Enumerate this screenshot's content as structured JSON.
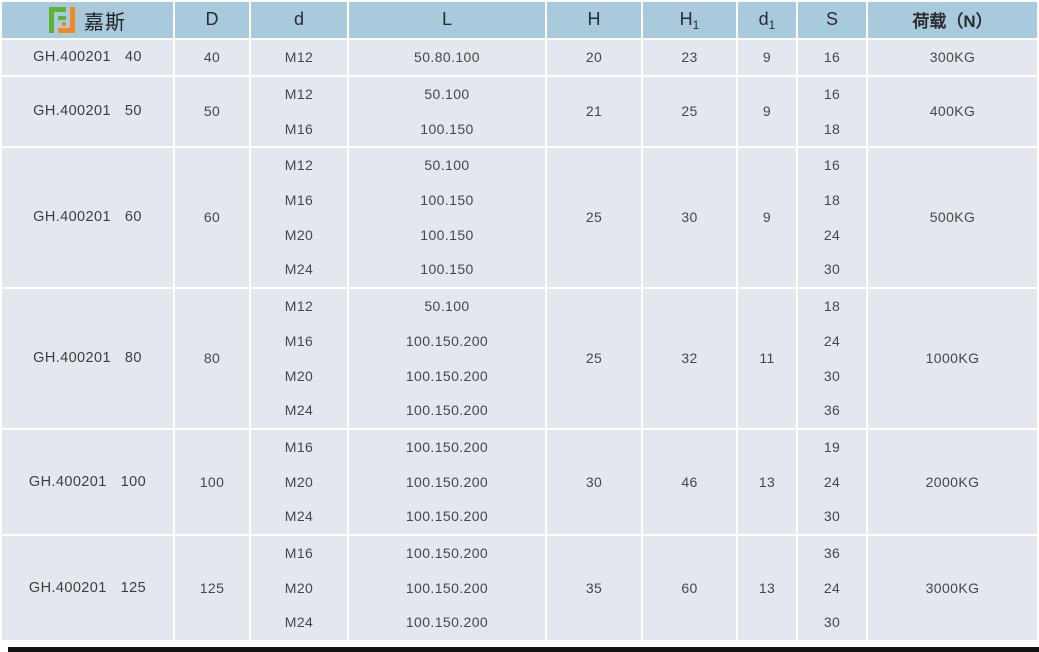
{
  "header": {
    "brand": "嘉斯",
    "columns": [
      {
        "label": "D"
      },
      {
        "label": "d"
      },
      {
        "label": "L"
      },
      {
        "label": "H"
      },
      {
        "label": "H",
        "sub": "1"
      },
      {
        "label": "d",
        "sub": "1"
      },
      {
        "label": "S"
      },
      {
        "label": "荷载（N）"
      }
    ]
  },
  "rows": [
    {
      "name": "GH.400201",
      "spec": "40",
      "D": "40",
      "d": [
        "M12"
      ],
      "L": [
        "50.80.100"
      ],
      "H": "20",
      "H1": "23",
      "d1": "9",
      "S": [
        "16"
      ],
      "load": "300KG"
    },
    {
      "name": "GH.400201",
      "spec": "50",
      "D": "50",
      "d": [
        "M12",
        "M16"
      ],
      "L": [
        "50.100",
        "100.150"
      ],
      "H": "21",
      "H1": "25",
      "d1": "9",
      "S": [
        "16",
        "18"
      ],
      "load": "400KG"
    },
    {
      "name": "GH.400201",
      "spec": "60",
      "D": "60",
      "d": [
        "M12",
        "M16",
        "M20",
        "M24"
      ],
      "L": [
        "50.100",
        "100.150",
        "100.150",
        "100.150"
      ],
      "H": "25",
      "H1": "30",
      "d1": "9",
      "S": [
        "16",
        "18",
        "24",
        "30"
      ],
      "load": "500KG"
    },
    {
      "name": "GH.400201",
      "spec": "80",
      "D": "80",
      "d": [
        "M12",
        "M16",
        "M20",
        "M24"
      ],
      "L": [
        "50.100",
        "100.150.200",
        "100.150.200",
        "100.150.200"
      ],
      "H": "25",
      "H1": "32",
      "d1": "11",
      "S": [
        "18",
        "24",
        "30",
        "36"
      ],
      "load": "1000KG"
    },
    {
      "name": "GH.400201",
      "spec": "100",
      "D": "100",
      "d": [
        "M16",
        "M20",
        "M24"
      ],
      "L": [
        "100.150.200",
        "100.150.200",
        "100.150.200"
      ],
      "H": "30",
      "H1": "46",
      "d1": "13",
      "S": [
        "19",
        "24",
        "30"
      ],
      "load": "2000KG"
    },
    {
      "name": "GH.400201",
      "spec": "125",
      "D": "125",
      "d": [
        "M16",
        "M20",
        "M24"
      ],
      "L": [
        "100.150.200",
        "100.150.200",
        "100.150.200"
      ],
      "H": "35",
      "H1": "60",
      "d1": "13",
      "S": [
        "36",
        "24",
        "30"
      ],
      "load": "3000KG"
    }
  ],
  "colors": {
    "header_bg": "#a9cadd",
    "row_bg": "#e4e7ee",
    "grid": "#ffffff",
    "footer_bar": "#121212",
    "logo_green": "#5cb431",
    "logo_orange": "#f08a21",
    "text": "#47474a"
  }
}
